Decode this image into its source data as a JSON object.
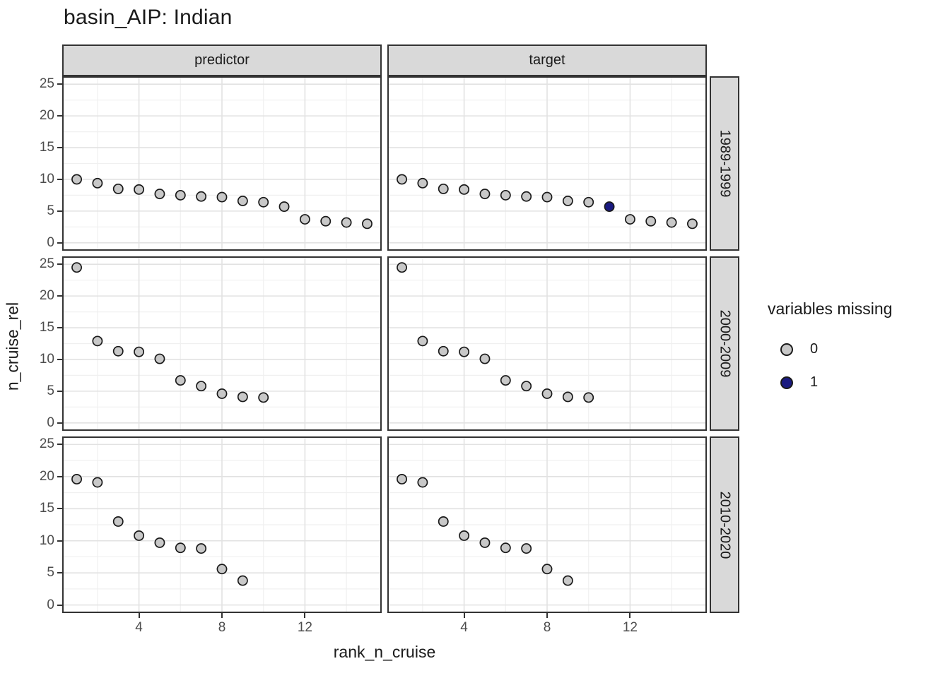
{
  "title": "basin_AIP: Indian",
  "axes": {
    "x_title": "rank_n_cruise",
    "y_title": "n_cruise_rel"
  },
  "legend": {
    "title": "variables missing",
    "entries": [
      {
        "label": "0",
        "color": "#c8c8c8"
      },
      {
        "label": "1",
        "color": "#1a1a80"
      }
    ]
  },
  "style_colors": {
    "point_stroke": "#1a1a1a",
    "panel_border": "#333333",
    "strip_fill": "#d9d9d9",
    "grid_major": "#e2e2e2",
    "grid_minor": "#f0f0f0",
    "tick_label": "#4d4d4d"
  },
  "chart_data": {
    "type": "scatter",
    "title": "basin_AIP: Indian",
    "xlabel": "rank_n_cruise",
    "ylabel": "n_cruise_rel",
    "facet_col_labels": [
      "predictor",
      "target"
    ],
    "facet_row_labels": [
      "1989-1999",
      "2000-2009",
      "2010-2020"
    ],
    "xlim": [
      0.3,
      15.7
    ],
    "ylim": [
      -1.25,
      26.25
    ],
    "x_ticks": [
      4,
      8,
      12
    ],
    "y_ticks": [
      0,
      5,
      10,
      15,
      20,
      25
    ],
    "x_minor_gridlines": [
      2,
      6,
      10,
      14
    ],
    "y_minor_gridlines": [
      2.5,
      7.5,
      12.5,
      17.5,
      22.5
    ],
    "point_format": "[rank_n_cruise, n_cruise_rel, variables_missing]",
    "missing_colors": {
      "0": "#c8c8c8",
      "1": "#1a1a80"
    },
    "panels": [
      {
        "col": "predictor",
        "row": "1989-1999",
        "points": [
          [
            1,
            10.0,
            0
          ],
          [
            2,
            9.4,
            0
          ],
          [
            3,
            8.5,
            0
          ],
          [
            4,
            8.4,
            0
          ],
          [
            5,
            7.7,
            0
          ],
          [
            6,
            7.5,
            0
          ],
          [
            7,
            7.3,
            0
          ],
          [
            8,
            7.2,
            0
          ],
          [
            9,
            6.6,
            0
          ],
          [
            10,
            6.4,
            0
          ],
          [
            11,
            5.7,
            0
          ],
          [
            12,
            3.7,
            0
          ],
          [
            13,
            3.4,
            0
          ],
          [
            14,
            3.2,
            0
          ],
          [
            15,
            3.0,
            0
          ]
        ]
      },
      {
        "col": "target",
        "row": "1989-1999",
        "points": [
          [
            1,
            10.0,
            0
          ],
          [
            2,
            9.4,
            0
          ],
          [
            3,
            8.5,
            0
          ],
          [
            4,
            8.4,
            0
          ],
          [
            5,
            7.7,
            0
          ],
          [
            6,
            7.5,
            0
          ],
          [
            7,
            7.3,
            0
          ],
          [
            8,
            7.2,
            0
          ],
          [
            9,
            6.6,
            0
          ],
          [
            10,
            6.4,
            0
          ],
          [
            11,
            5.7,
            1
          ],
          [
            12,
            3.7,
            0
          ],
          [
            13,
            3.4,
            0
          ],
          [
            14,
            3.2,
            0
          ],
          [
            15,
            3.0,
            0
          ]
        ]
      },
      {
        "col": "predictor",
        "row": "2000-2009",
        "points": [
          [
            1,
            24.5,
            0
          ],
          [
            2,
            12.9,
            0
          ],
          [
            3,
            11.3,
            0
          ],
          [
            4,
            11.2,
            0
          ],
          [
            5,
            10.1,
            0
          ],
          [
            6,
            6.7,
            0
          ],
          [
            7,
            5.8,
            0
          ],
          [
            8,
            4.6,
            0
          ],
          [
            9,
            4.1,
            0
          ],
          [
            10,
            4.0,
            0
          ]
        ]
      },
      {
        "col": "target",
        "row": "2000-2009",
        "points": [
          [
            1,
            24.5,
            0
          ],
          [
            2,
            12.9,
            0
          ],
          [
            3,
            11.3,
            0
          ],
          [
            4,
            11.2,
            0
          ],
          [
            5,
            10.1,
            0
          ],
          [
            6,
            6.7,
            0
          ],
          [
            7,
            5.8,
            0
          ],
          [
            8,
            4.6,
            0
          ],
          [
            9,
            4.1,
            0
          ],
          [
            10,
            4.0,
            0
          ]
        ]
      },
      {
        "col": "predictor",
        "row": "2010-2020",
        "points": [
          [
            1,
            19.6,
            0
          ],
          [
            2,
            19.1,
            0
          ],
          [
            3,
            13.0,
            0
          ],
          [
            4,
            10.8,
            0
          ],
          [
            5,
            9.7,
            0
          ],
          [
            6,
            8.9,
            0
          ],
          [
            7,
            8.8,
            0
          ],
          [
            8,
            5.6,
            0
          ],
          [
            9,
            3.8,
            0
          ]
        ]
      },
      {
        "col": "target",
        "row": "2010-2020",
        "points": [
          [
            1,
            19.6,
            0
          ],
          [
            2,
            19.1,
            0
          ],
          [
            3,
            13.0,
            0
          ],
          [
            4,
            10.8,
            0
          ],
          [
            5,
            9.7,
            0
          ],
          [
            6,
            8.9,
            0
          ],
          [
            7,
            8.8,
            0
          ],
          [
            8,
            5.6,
            0
          ],
          [
            9,
            3.8,
            0
          ]
        ]
      }
    ],
    "legend_position": "right",
    "grid": true
  }
}
